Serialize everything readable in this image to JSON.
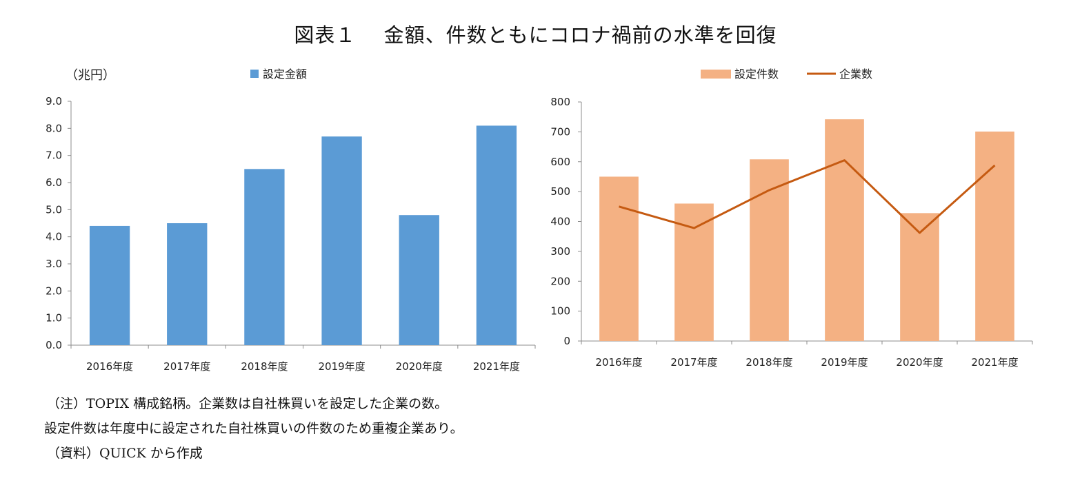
{
  "title": "図表１　 金額、件数ともにコロナ禍前の水準を回復",
  "notes": [
    "（注）TOPIX 構成銘柄。企業数は自社株買いを設定した企業の数。",
    "設定件数は年度中に設定された自社株買いの件数のため重複企業あり。",
    "（資料）QUICK から作成"
  ],
  "chart_data": [
    {
      "type": "bar",
      "unit_label": "（兆円）",
      "categories": [
        "2016年度",
        "2017年度",
        "2018年度",
        "2019年度",
        "2020年度",
        "2021年度"
      ],
      "series": [
        {
          "name": "設定金額",
          "values": [
            4.4,
            4.5,
            6.5,
            7.7,
            4.8,
            8.1
          ],
          "color": "#5b9bd5"
        }
      ],
      "ylim": [
        0,
        9
      ],
      "yticks": [
        "0.0",
        "1.0",
        "2.0",
        "3.0",
        "4.0",
        "5.0",
        "6.0",
        "7.0",
        "8.0",
        "9.0"
      ],
      "grid": false,
      "legend": "top"
    },
    {
      "type": "bar+line",
      "categories": [
        "2016年度",
        "2017年度",
        "2018年度",
        "2019年度",
        "2020年度",
        "2021年度"
      ],
      "series": [
        {
          "name": "設定件数",
          "type": "bar",
          "values": [
            550,
            460,
            608,
            742,
            428,
            701
          ],
          "color": "#f4b183"
        },
        {
          "name": "企業数",
          "type": "line",
          "values": [
            450,
            378,
            505,
            605,
            362,
            588
          ],
          "color": "#c55a11"
        }
      ],
      "ylim": [
        0,
        800
      ],
      "yticks": [
        "0",
        "100",
        "200",
        "300",
        "400",
        "500",
        "600",
        "700",
        "800"
      ],
      "grid": false,
      "legend": "top"
    }
  ]
}
